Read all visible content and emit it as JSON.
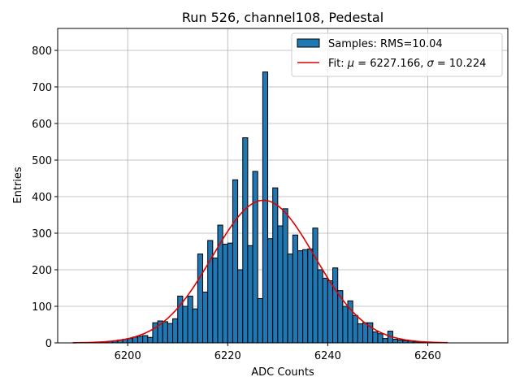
{
  "chart_data": {
    "type": "histogram",
    "title": "Run 526, channel108, Pedestal",
    "xlabel": "ADC Counts",
    "ylabel": "Entries",
    "xlim": [
      6186,
      6276
    ],
    "ylim": [
      0,
      860
    ],
    "xticks": [
      6200,
      6220,
      6240,
      6260
    ],
    "yticks": [
      0,
      100,
      200,
      300,
      400,
      500,
      600,
      700,
      800
    ],
    "grid": true,
    "legend_position": "top-right",
    "bin_width": 1,
    "bins": [
      [
        6194,
        2
      ],
      [
        6195,
        3
      ],
      [
        6196,
        4
      ],
      [
        6197,
        5
      ],
      [
        6198,
        8
      ],
      [
        6199,
        10
      ],
      [
        6200,
        12
      ],
      [
        6201,
        16
      ],
      [
        6202,
        18
      ],
      [
        6203,
        20
      ],
      [
        6204,
        15
      ],
      [
        6205,
        55
      ],
      [
        6206,
        60
      ],
      [
        6207,
        58
      ],
      [
        6208,
        53
      ],
      [
        6209,
        66
      ],
      [
        6210,
        128
      ],
      [
        6211,
        100
      ],
      [
        6212,
        128
      ],
      [
        6213,
        93
      ],
      [
        6214,
        243
      ],
      [
        6215,
        139
      ],
      [
        6216,
        280
      ],
      [
        6217,
        232
      ],
      [
        6218,
        322
      ],
      [
        6219,
        270
      ],
      [
        6220,
        273
      ],
      [
        6221,
        446
      ],
      [
        6222,
        200
      ],
      [
        6223,
        561
      ],
      [
        6224,
        266
      ],
      [
        6225,
        469
      ],
      [
        6226,
        121
      ],
      [
        6227,
        741
      ],
      [
        6228,
        285
      ],
      [
        6229,
        424
      ],
      [
        6230,
        320
      ],
      [
        6231,
        367
      ],
      [
        6232,
        243
      ],
      [
        6233,
        295
      ],
      [
        6234,
        252
      ],
      [
        6235,
        255
      ],
      [
        6236,
        257
      ],
      [
        6237,
        314
      ],
      [
        6238,
        200
      ],
      [
        6239,
        177
      ],
      [
        6240,
        170
      ],
      [
        6241,
        205
      ],
      [
        6242,
        143
      ],
      [
        6243,
        100
      ],
      [
        6244,
        115
      ],
      [
        6245,
        75
      ],
      [
        6246,
        52
      ],
      [
        6247,
        55
      ],
      [
        6248,
        55
      ],
      [
        6249,
        30
      ],
      [
        6250,
        25
      ],
      [
        6251,
        12
      ],
      [
        6252,
        32
      ],
      [
        6253,
        10
      ],
      [
        6254,
        8
      ],
      [
        6255,
        6
      ],
      [
        6256,
        5
      ],
      [
        6257,
        3
      ],
      [
        6258,
        2
      ],
      [
        6259,
        2
      ]
    ],
    "fit": {
      "mu": 6227.166,
      "sigma": 10.224,
      "amplitude": 390,
      "x_range": [
        6189,
        6264
      ],
      "color": "#e00000"
    },
    "series_colors": {
      "bars": "#1f77b4",
      "fit": "#e00000"
    },
    "legend": {
      "samples_label": "Samples: RMS=10.04",
      "fit_prefix": "Fit: ",
      "mu_symbol": "μ",
      "fit_mid": " = 6227.166, ",
      "sigma_symbol": "σ",
      "fit_suffix": " = 10.224"
    }
  }
}
